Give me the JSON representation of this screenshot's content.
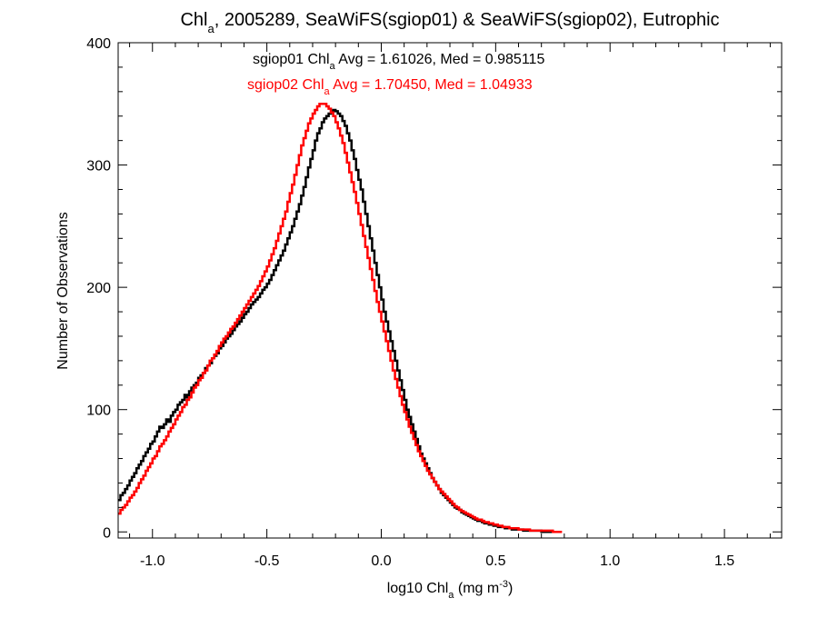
{
  "chart_data": {
    "type": "histogram",
    "title": {
      "pre": "Chl",
      "sub": "a",
      "post": ", 2005289, SeaWiFS(sgiop01) & SeaWiFS(sgiop02), Eutrophic"
    },
    "xlabel": {
      "pre": "log10 Chl",
      "sub": "a",
      "mid": " (mg m",
      "sup": "-3",
      "post": ")"
    },
    "ylabel": "Number of Observations",
    "xlim": [
      -1.15,
      1.75
    ],
    "ylim": [
      -5,
      400
    ],
    "xticks": [
      -1.0,
      -0.5,
      0.0,
      0.5,
      1.0,
      1.5
    ],
    "xtick_labels": [
      "-1.0",
      "-0.5",
      "0.0",
      "0.5",
      "1.0",
      "1.5"
    ],
    "yticks": [
      0,
      100,
      200,
      300,
      400
    ],
    "ytick_labels": [
      "0",
      "100",
      "200",
      "300",
      "400"
    ],
    "colors": {
      "sgiop01": "#000000",
      "sgiop02": "#ff0000"
    },
    "stats": [
      {
        "pre": "sgiop01 Chl",
        "sub": "a",
        "post": " Avg = 1.61026, Med = 0.985115",
        "color": "#000000"
      },
      {
        "pre": "sgiop02 Chl",
        "sub": "a",
        "post": " Avg = 1.70450, Med = 1.04933",
        "color": "#ff0000"
      }
    ],
    "bin_width": 0.01,
    "x_start": -1.15,
    "series": [
      {
        "name": "sgiop01",
        "color": "#000000",
        "values": [
          26,
          30,
          32,
          35,
          38,
          42,
          45,
          48,
          52,
          55,
          58,
          62,
          65,
          68,
          72,
          74,
          78,
          82,
          86,
          85,
          88,
          92,
          90,
          95,
          98,
          100,
          104,
          106,
          108,
          112,
          110,
          115,
          118,
          120,
          122,
          126,
          128,
          130,
          134,
          136,
          138,
          142,
          144,
          146,
          150,
          152,
          155,
          158,
          160,
          162,
          165,
          168,
          170,
          172,
          175,
          178,
          180,
          183,
          186,
          188,
          190,
          192,
          195,
          198,
          200,
          203,
          206,
          210,
          214,
          218,
          222,
          226,
          230,
          235,
          240,
          245,
          250,
          256,
          262,
          268,
          275,
          282,
          290,
          298,
          305,
          312,
          320,
          326,
          330,
          335,
          338,
          340,
          342,
          344,
          345,
          344,
          342,
          340,
          336,
          332,
          326,
          320,
          312,
          305,
          296,
          288,
          280,
          270,
          260,
          250,
          240,
          230,
          220,
          210,
          200,
          190,
          180,
          172,
          164,
          156,
          148,
          140,
          132,
          124,
          116,
          108,
          100,
          94,
          88,
          82,
          76,
          70,
          64,
          60,
          56,
          52,
          48,
          44,
          41,
          38,
          35,
          32,
          30,
          28,
          26,
          24,
          22,
          20,
          19,
          18,
          16,
          15,
          14,
          13,
          12,
          11,
          10,
          9,
          9,
          8,
          7,
          7,
          6,
          6,
          5,
          5,
          4,
          4,
          4,
          3,
          3,
          3,
          2,
          2,
          2,
          2,
          2,
          1,
          1,
          1,
          1,
          1,
          1,
          1,
          1,
          0,
          0,
          0,
          0,
          0
        ]
      },
      {
        "name": "sgiop02",
        "color": "#ff0000",
        "values": [
          15,
          18,
          20,
          22,
          25,
          28,
          30,
          33,
          36,
          40,
          43,
          46,
          50,
          53,
          56,
          60,
          62,
          66,
          70,
          72,
          75,
          78,
          82,
          85,
          88,
          92,
          95,
          98,
          102,
          104,
          108,
          110,
          114,
          118,
          120,
          124,
          126,
          130,
          132,
          136,
          140,
          142,
          145,
          148,
          152,
          155,
          158,
          160,
          163,
          166,
          168,
          171,
          174,
          177,
          180,
          183,
          186,
          189,
          192,
          195,
          198,
          201,
          205,
          209,
          213,
          217,
          222,
          227,
          232,
          238,
          244,
          250,
          256,
          262,
          270,
          277,
          284,
          292,
          300,
          308,
          316,
          322,
          328,
          334,
          338,
          342,
          345,
          348,
          350,
          350,
          350,
          348,
          346,
          343,
          340,
          335,
          330,
          324,
          318,
          310,
          302,
          294,
          286,
          278,
          269,
          260,
          251,
          242,
          233,
          224,
          215,
          206,
          197,
          188,
          180,
          172,
          164,
          156,
          148,
          140,
          132,
          125,
          118,
          111,
          104,
          98,
          92,
          86,
          81,
          76,
          71,
          66,
          62,
          58,
          54,
          50,
          47,
          44,
          41,
          38,
          35,
          33,
          31,
          29,
          27,
          25,
          23,
          21,
          20,
          18,
          17,
          16,
          15,
          14,
          13,
          12,
          11,
          10,
          10,
          9,
          8,
          8,
          7,
          7,
          6,
          6,
          5,
          5,
          4,
          4,
          4,
          3,
          3,
          3,
          3,
          2,
          2,
          2,
          2,
          2,
          1,
          1,
          1,
          1,
          1,
          1,
          1,
          1,
          1,
          1,
          0,
          0,
          0,
          0
        ]
      }
    ]
  }
}
